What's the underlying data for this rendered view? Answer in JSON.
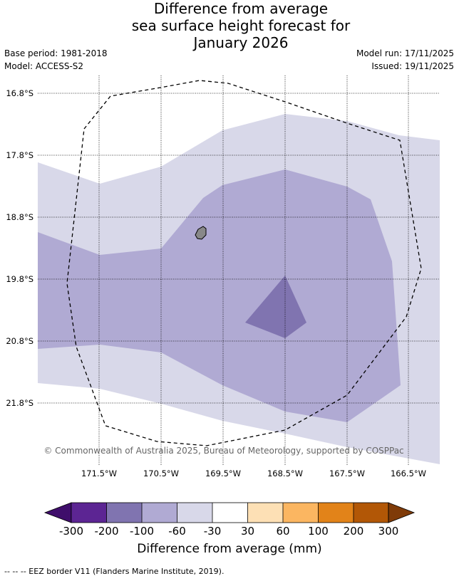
{
  "title": {
    "line1": "Difference from average",
    "line2": "sea surface height forecast for",
    "line3": "January 2026"
  },
  "meta": {
    "base_period": "Base period: 1981-2018",
    "model": "Model: ACCESS-S2",
    "model_run": "Model run: 17/11/2025",
    "issued": "Issued: 19/11/2025"
  },
  "map": {
    "lat_labels": [
      "16.8°S",
      "17.8°S",
      "18.8°S",
      "19.8°S",
      "20.8°S",
      "21.8°S"
    ],
    "lon_labels": [
      "171.5°W",
      "170.5°W",
      "169.5°W",
      "168.5°W",
      "167.5°W",
      "166.5°W"
    ],
    "copyright": "© Commonwealth of Australia 2025, Bureau of Meteorology, supported by COSPPac",
    "colors": {
      "band_-60_-30": "#d8d8e9",
      "band_-100_-60": "#b0aad3",
      "band_-200_-100": "#8074b0",
      "island": "#888888"
    }
  },
  "colorbar": {
    "tick_labels": [
      "-300",
      "-200",
      "-100",
      "-60",
      "-30",
      "30",
      "60",
      "100",
      "200",
      "300"
    ],
    "label": "Difference from average (mm)",
    "colors": [
      "#3f0e6b",
      "#5c2593",
      "#8074b0",
      "#b0aad3",
      "#d8d8e9",
      "#ffffff",
      "#fde0b5",
      "#fbb661",
      "#e28319",
      "#b25706",
      "#7f3b08"
    ]
  },
  "footnote": "--  --  -- EEZ border V11 (Flanders Marine Institute, 2019)."
}
